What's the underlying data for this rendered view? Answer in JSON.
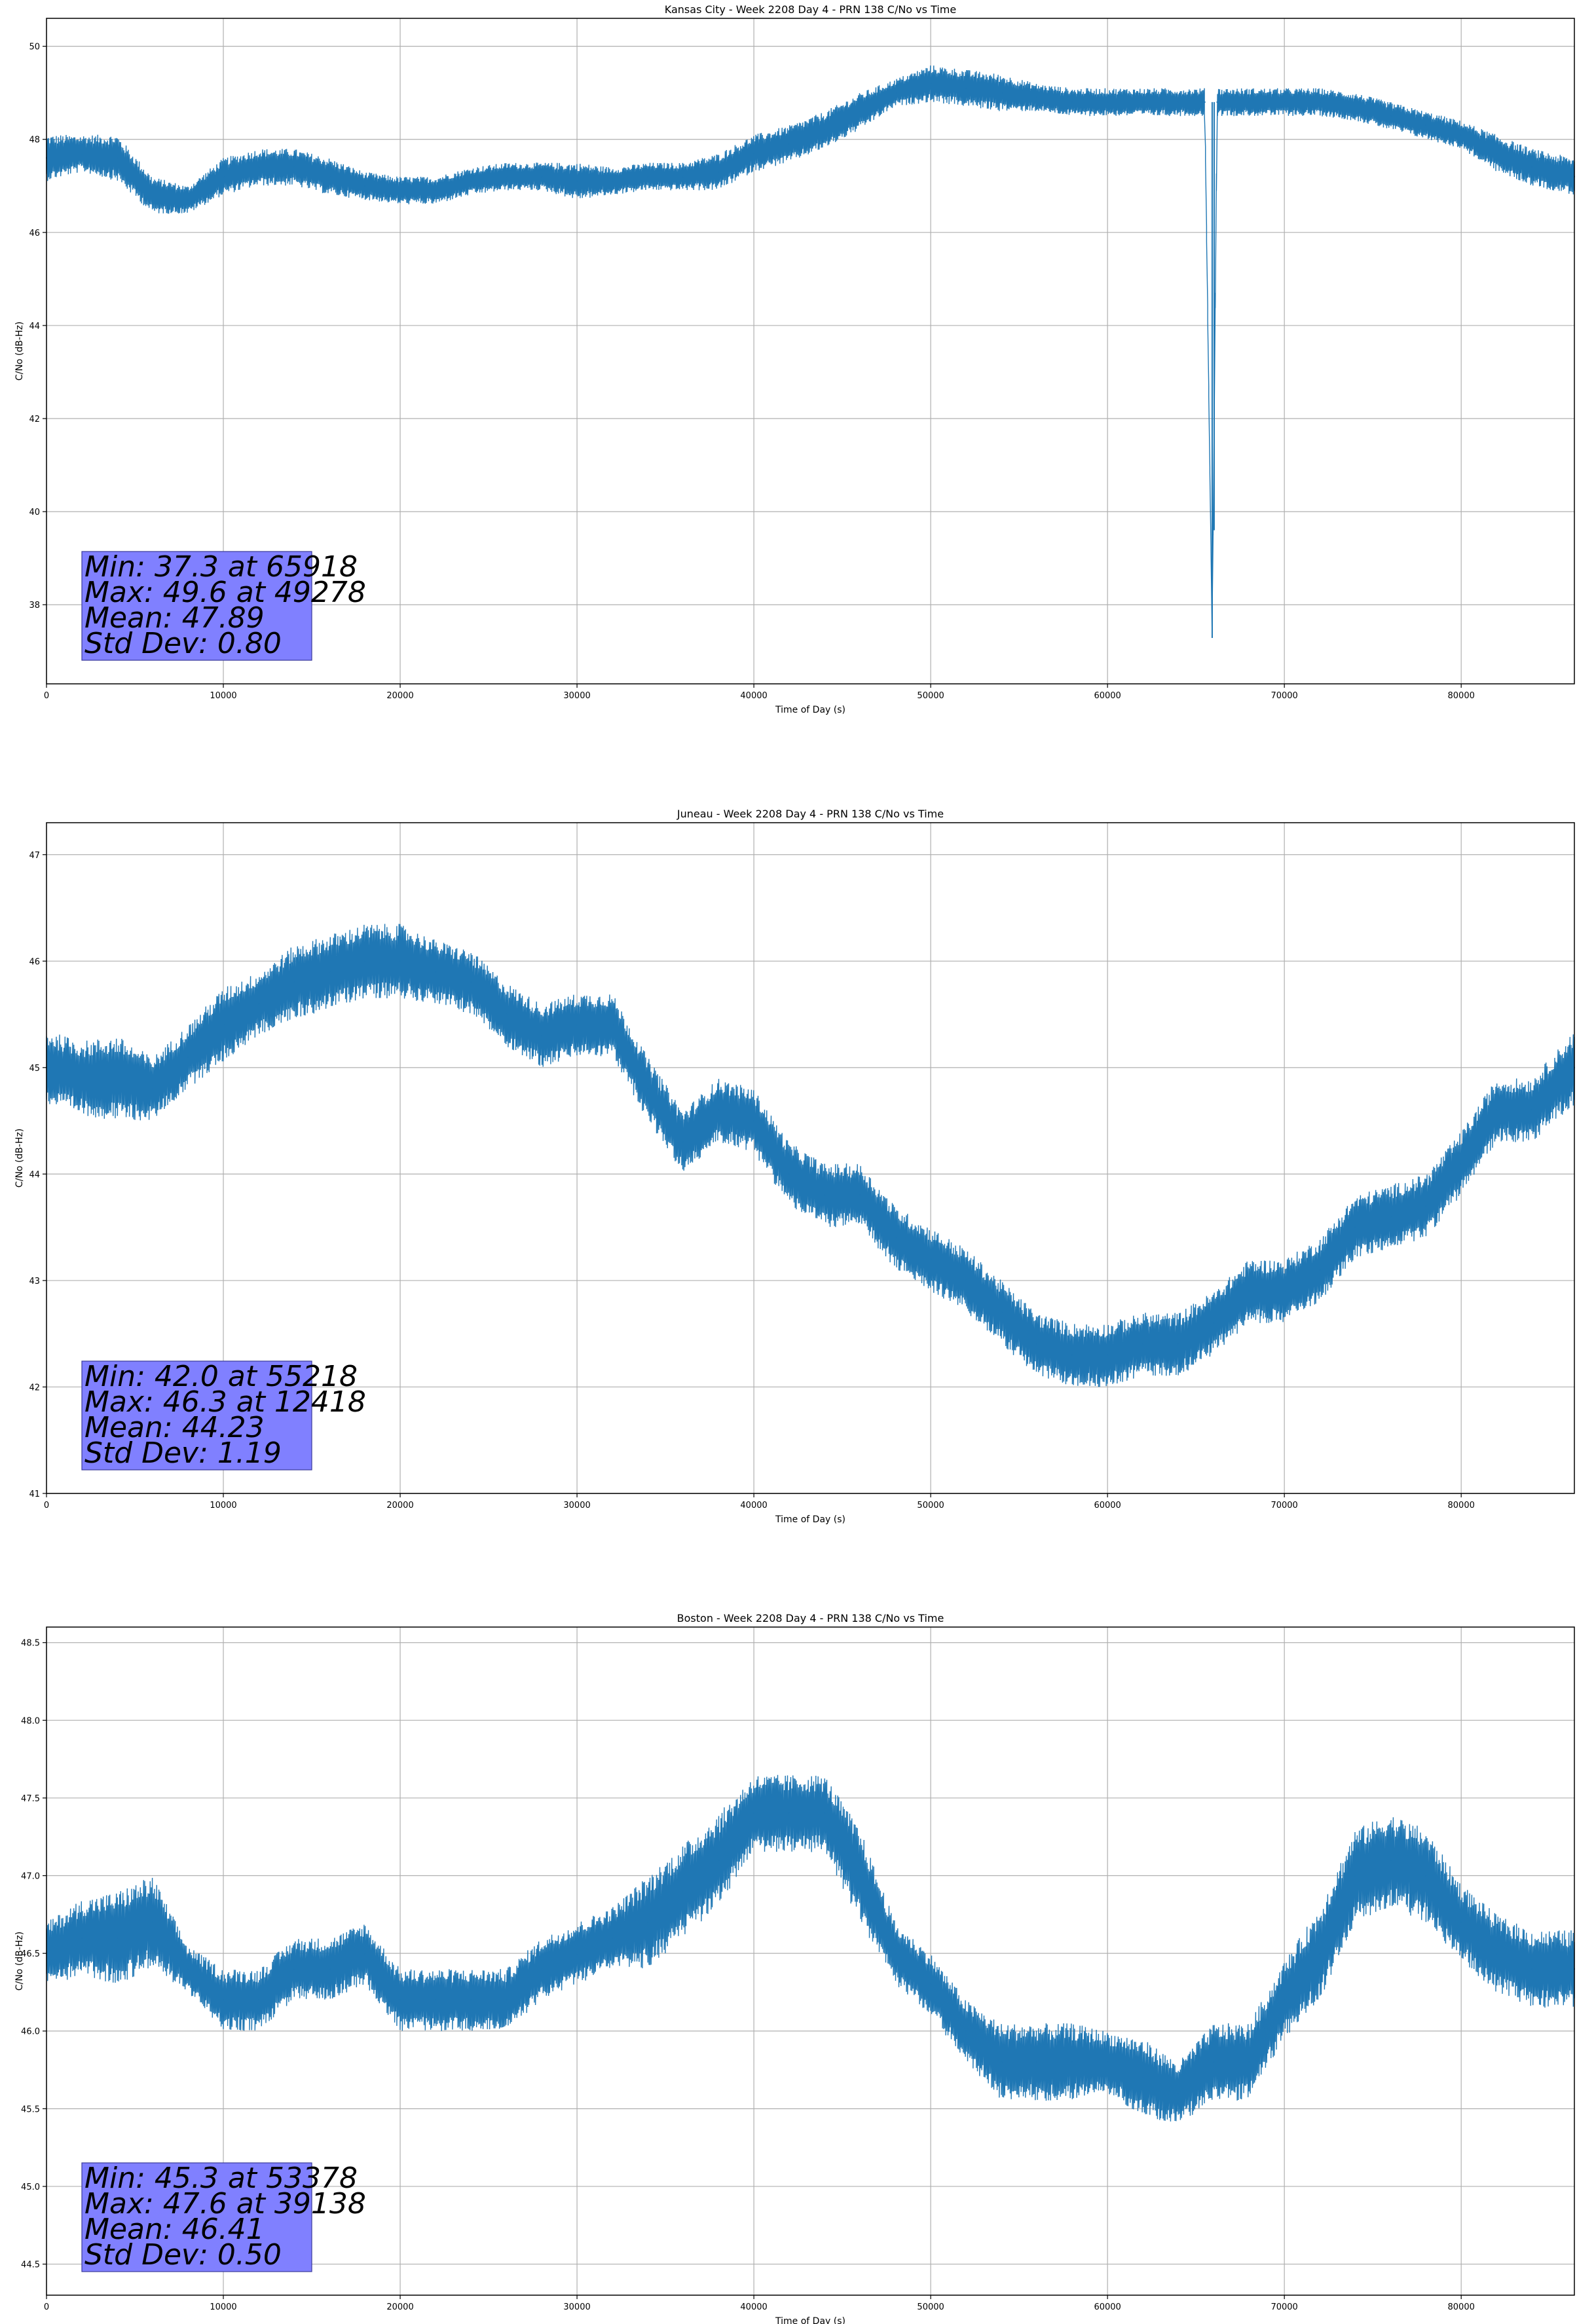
{
  "chart_data": [
    {
      "type": "line",
      "title": "Kansas City - Week 2208 Day 4 - PRN 138 C/No vs Time",
      "xlabel": "Time of Day (s)",
      "ylabel": "C/No (dB-Hz)",
      "xlim": [
        0,
        86400
      ],
      "ylim": [
        36.3,
        50.6
      ],
      "xticks": [
        0,
        10000,
        20000,
        30000,
        40000,
        50000,
        60000,
        70000,
        80000
      ],
      "yticks": [
        38,
        40,
        42,
        44,
        46,
        48,
        50
      ],
      "ytick_labels": [
        "38",
        "40",
        "42",
        "44",
        "46",
        "48",
        "50"
      ],
      "grid": true,
      "line_color": "#1f77b4",
      "series": [
        {
          "x": [
            0,
            2000,
            4000,
            6000,
            8000,
            10000,
            12000,
            14000,
            16000,
            18000,
            20000,
            22000,
            24000,
            26000,
            28000,
            30000,
            32000,
            34000,
            36000,
            38000,
            40000,
            42000,
            44000,
            46000,
            48000,
            50000,
            52000,
            54000,
            56000,
            58000,
            60000,
            62000,
            64000,
            65500,
            65918,
            66200,
            68000,
            70000,
            72000,
            74000,
            76000,
            78000,
            80000,
            82000,
            84000,
            86400
          ],
          "y": [
            47.6,
            47.7,
            47.6,
            46.8,
            46.7,
            47.2,
            47.4,
            47.4,
            47.2,
            47.0,
            46.9,
            46.9,
            47.1,
            47.2,
            47.2,
            47.1,
            47.1,
            47.2,
            47.2,
            47.3,
            47.7,
            47.9,
            48.2,
            48.6,
            49.0,
            49.2,
            49.1,
            49.0,
            48.9,
            48.8,
            48.8,
            48.8,
            48.8,
            48.8,
            37.3,
            48.8,
            48.8,
            48.8,
            48.8,
            48.7,
            48.5,
            48.3,
            48.1,
            47.7,
            47.4,
            47.2
          ],
          "band": [
            0.5,
            0.4,
            0.5,
            0.4,
            0.3,
            0.4,
            0.4,
            0.4,
            0.4,
            0.3,
            0.3,
            0.3,
            0.3,
            0.3,
            0.3,
            0.4,
            0.3,
            0.3,
            0.3,
            0.4,
            0.4,
            0.4,
            0.4,
            0.4,
            0.3,
            0.4,
            0.4,
            0.4,
            0.3,
            0.3,
            0.3,
            0.3,
            0.3,
            0.3,
            0.0,
            0.3,
            0.3,
            0.3,
            0.3,
            0.3,
            0.3,
            0.3,
            0.3,
            0.4,
            0.4,
            0.4
          ]
        }
      ],
      "stats": [
        "Min: 37.3 at 65918",
        "Max: 49.6 at 49278",
        "Mean: 47.89",
        "Std Dev: 0.80"
      ]
    },
    {
      "type": "line",
      "title": "Juneau - Week 2208 Day 4 - PRN 138 C/No vs Time",
      "xlabel": "Time of Day (s)",
      "ylabel": "C/No (dB-Hz)",
      "xlim": [
        0,
        86400
      ],
      "ylim": [
        41.0,
        47.3
      ],
      "xticks": [
        0,
        10000,
        20000,
        30000,
        40000,
        50000,
        60000,
        70000,
        80000
      ],
      "yticks": [
        41,
        42,
        43,
        44,
        45,
        46,
        47
      ],
      "ytick_labels": [
        "41",
        "42",
        "43",
        "44",
        "45",
        "46",
        "47"
      ],
      "grid": true,
      "line_color": "#1f77b4",
      "series": [
        {
          "x": [
            0,
            2000,
            4000,
            6000,
            8000,
            10000,
            12000,
            14000,
            16000,
            18000,
            20000,
            22000,
            24000,
            26000,
            28000,
            30000,
            32000,
            34000,
            36000,
            38000,
            40000,
            42000,
            44000,
            46000,
            48000,
            50000,
            52000,
            54000,
            56000,
            58000,
            60000,
            62000,
            64000,
            66000,
            68000,
            70000,
            72000,
            74000,
            76000,
            78000,
            80000,
            82000,
            84000,
            86400
          ],
          "y": [
            45.0,
            44.9,
            44.9,
            44.8,
            45.1,
            45.4,
            45.6,
            45.8,
            45.9,
            46.0,
            46.0,
            45.9,
            45.8,
            45.5,
            45.3,
            45.4,
            45.4,
            44.8,
            44.3,
            44.6,
            44.5,
            44.0,
            43.8,
            43.8,
            43.4,
            43.2,
            43.0,
            42.7,
            42.4,
            42.3,
            42.3,
            42.4,
            42.4,
            42.6,
            42.9,
            42.9,
            43.1,
            43.5,
            43.6,
            43.7,
            44.1,
            44.6,
            44.6,
            45.0
          ],
          "band": [
            0.35,
            0.35,
            0.4,
            0.3,
            0.3,
            0.35,
            0.3,
            0.35,
            0.35,
            0.35,
            0.35,
            0.3,
            0.3,
            0.3,
            0.3,
            0.3,
            0.3,
            0.3,
            0.3,
            0.3,
            0.3,
            0.3,
            0.3,
            0.3,
            0.3,
            0.3,
            0.3,
            0.3,
            0.3,
            0.3,
            0.3,
            0.3,
            0.3,
            0.3,
            0.3,
            0.3,
            0.3,
            0.3,
            0.3,
            0.3,
            0.3,
            0.3,
            0.3,
            0.35
          ]
        }
      ],
      "stats": [
        "Min: 42.0 at 55218",
        "Max: 46.3 at 12418",
        "Mean: 44.23",
        "Std Dev: 1.19"
      ]
    },
    {
      "type": "line",
      "title": "Boston - Week 2208 Day 4 - PRN 138 C/No vs Time",
      "xlabel": "Time of Day (s)",
      "ylabel": "C/No (dB-Hz)",
      "xlim": [
        0,
        86400
      ],
      "ylim": [
        44.3,
        48.6
      ],
      "xticks": [
        0,
        10000,
        20000,
        30000,
        40000,
        50000,
        60000,
        70000,
        80000
      ],
      "yticks": [
        44.5,
        45.0,
        45.5,
        46.0,
        46.5,
        47.0,
        47.5,
        48.0,
        48.5
      ],
      "ytick_labels": [
        "44.5",
        "45.0",
        "45.5",
        "46.0",
        "46.5",
        "47.0",
        "47.5",
        "48.0",
        "48.5"
      ],
      "grid": true,
      "line_color": "#1f77b4",
      "series": [
        {
          "x": [
            0,
            2000,
            4000,
            6000,
            8000,
            10000,
            12000,
            14000,
            16000,
            18000,
            20000,
            22000,
            24000,
            26000,
            28000,
            30000,
            32000,
            34000,
            36000,
            38000,
            40000,
            42000,
            44000,
            46000,
            48000,
            50000,
            52000,
            54000,
            56000,
            58000,
            60000,
            62000,
            64000,
            66000,
            68000,
            70000,
            72000,
            74000,
            76000,
            78000,
            80000,
            82000,
            84000,
            86400
          ],
          "y": [
            46.5,
            46.6,
            46.6,
            46.7,
            46.4,
            46.2,
            46.2,
            46.4,
            46.4,
            46.5,
            46.2,
            46.2,
            46.2,
            46.2,
            46.4,
            46.5,
            46.6,
            46.7,
            46.9,
            47.1,
            47.4,
            47.4,
            47.4,
            47.0,
            46.5,
            46.3,
            46.0,
            45.8,
            45.8,
            45.8,
            45.8,
            45.7,
            45.6,
            45.8,
            45.8,
            46.2,
            46.5,
            47.0,
            47.1,
            47.0,
            46.7,
            46.5,
            46.4,
            46.4
          ],
          "band": [
            0.2,
            0.25,
            0.3,
            0.3,
            0.15,
            0.2,
            0.2,
            0.2,
            0.2,
            0.2,
            0.2,
            0.2,
            0.2,
            0.2,
            0.2,
            0.2,
            0.2,
            0.3,
            0.3,
            0.3,
            0.25,
            0.25,
            0.25,
            0.3,
            0.2,
            0.2,
            0.2,
            0.25,
            0.25,
            0.25,
            0.2,
            0.25,
            0.2,
            0.25,
            0.25,
            0.25,
            0.3,
            0.3,
            0.3,
            0.3,
            0.25,
            0.25,
            0.25,
            0.25
          ]
        }
      ],
      "stats": [
        "Min: 45.3 at 53378",
        "Max: 47.6 at 39138",
        "Mean: 46.41",
        "Std Dev: 0.50"
      ]
    }
  ]
}
